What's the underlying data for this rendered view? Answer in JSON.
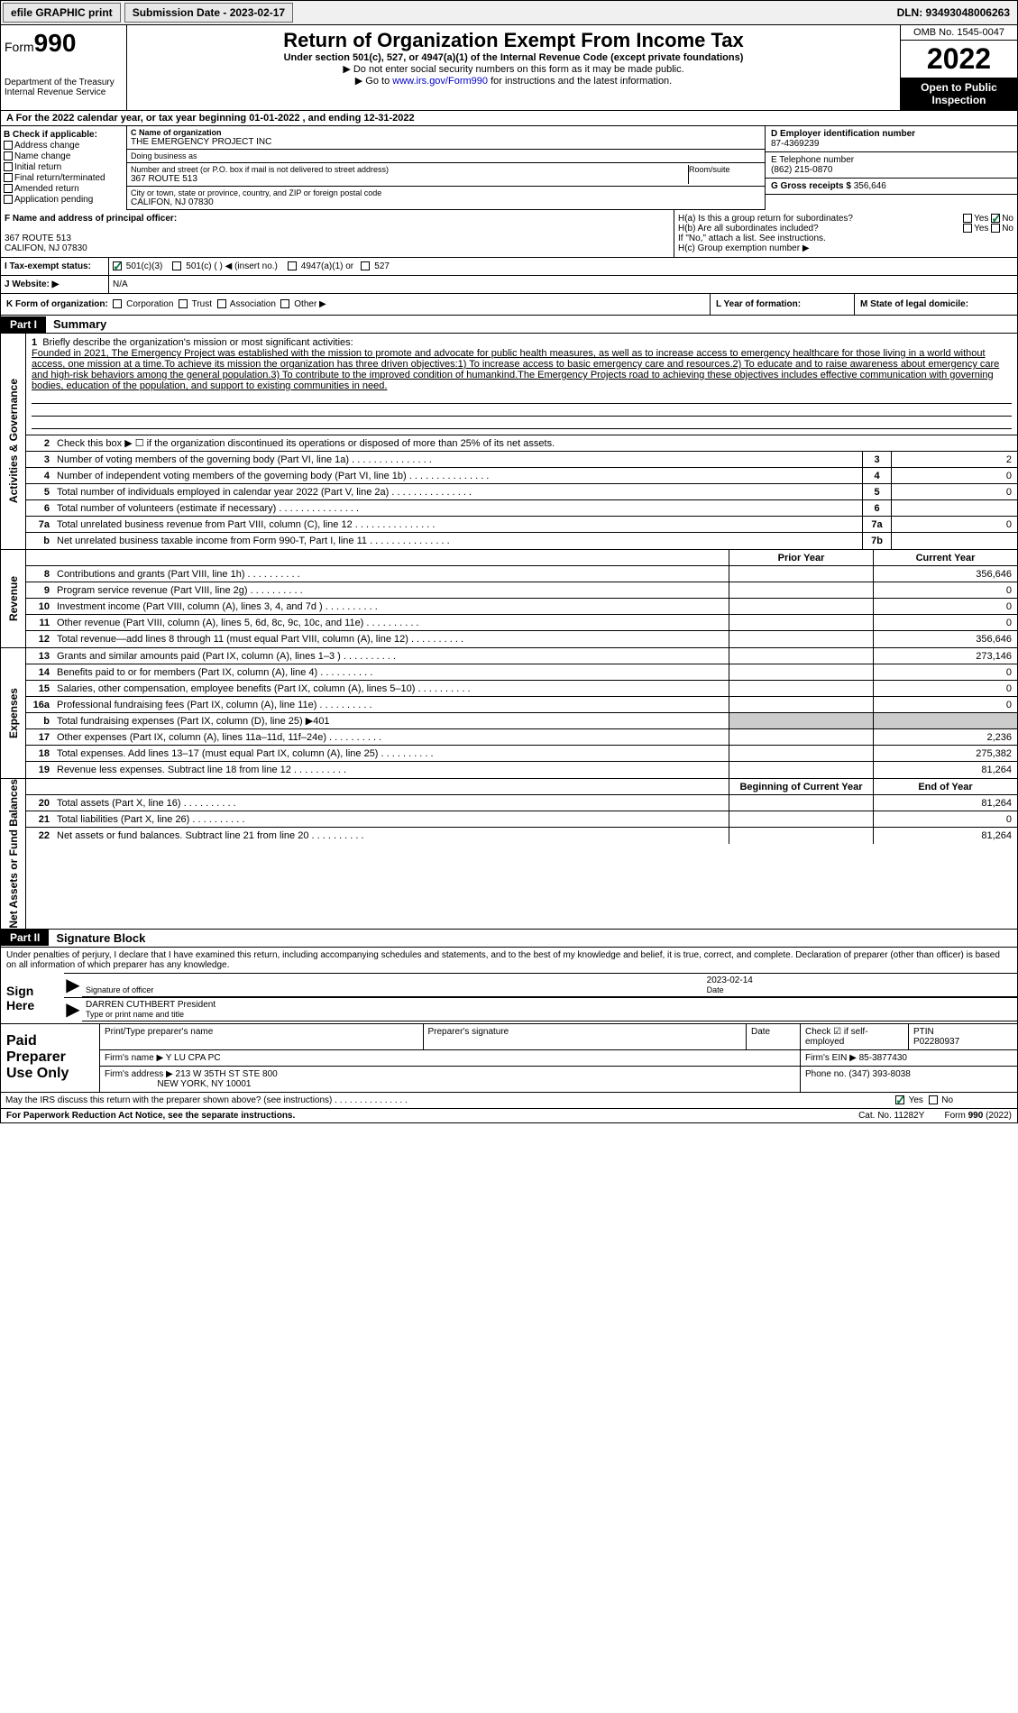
{
  "topbar": {
    "efile": "efile GRAPHIC print",
    "submission": "Submission Date - 2023-02-17",
    "dln": "DLN: 93493048006263"
  },
  "header": {
    "form_prefix": "Form",
    "form_number": "990",
    "dept": "Department of the Treasury",
    "irs": "Internal Revenue Service",
    "title": "Return of Organization Exempt From Income Tax",
    "subtitle": "Under section 501(c), 527, or 4947(a)(1) of the Internal Revenue Code (except private foundations)",
    "note1": "▶ Do not enter social security numbers on this form as it may be made public.",
    "note2_pre": "▶ Go to ",
    "note2_link": "www.irs.gov/Form990",
    "note2_post": " for instructions and the latest information.",
    "omb": "OMB No. 1545-0047",
    "year": "2022",
    "open": "Open to Public Inspection"
  },
  "row_a": "A For the 2022 calendar year, or tax year beginning 01-01-2022   , and ending 12-31-2022",
  "col_b": {
    "title": "B Check if applicable:",
    "items": [
      "Address change",
      "Name change",
      "Initial return",
      "Final return/terminated",
      "Amended return",
      "Application pending"
    ]
  },
  "col_c": {
    "name_label": "C Name of organization",
    "name": "THE EMERGENCY PROJECT INC",
    "dba_label": "Doing business as",
    "dba": "",
    "addr_label": "Number and street (or P.O. box if mail is not delivered to street address)",
    "room_label": "Room/suite",
    "addr": "367 ROUTE 513",
    "city_label": "City or town, state or province, country, and ZIP or foreign postal code",
    "city": "CALIFON, NJ  07830",
    "f_label": "F Name and address of principal officer:",
    "f_addr1": "367 ROUTE 513",
    "f_addr2": "CALIFON, NJ  07830"
  },
  "col_d": {
    "ein_label": "D Employer identification number",
    "ein": "87-4369239",
    "tel_label": "E Telephone number",
    "tel": "(862) 215-0870",
    "gross_label": "G Gross receipts $",
    "gross": "356,646",
    "ha": "H(a)  Is this a group return for subordinates?",
    "hb": "H(b)  Are all subordinates included?",
    "hb_note": "If \"No,\" attach a list. See instructions.",
    "hc": "H(c)  Group exemption number ▶",
    "yes": "Yes",
    "no": "No"
  },
  "status": {
    "label": "I  Tax-exempt status:",
    "opt1": "501(c)(3)",
    "opt2": "501(c) (  ) ◀ (insert no.)",
    "opt3": "4947(a)(1) or",
    "opt4": "527"
  },
  "website": {
    "label": "J  Website: ▶",
    "value": "N/A"
  },
  "korg": {
    "k": "K Form of organization:",
    "opts": [
      "Corporation",
      "Trust",
      "Association",
      "Other ▶"
    ],
    "l": "L Year of formation:",
    "m": "M State of legal domicile:"
  },
  "part1": {
    "tag": "Part I",
    "title": "Summary"
  },
  "summary": {
    "q1_label": "1",
    "q1": "Briefly describe the organization's mission or most significant activities:",
    "mission": "Founded in 2021, The Emergency Project was established with the mission to promote and advocate for public health measures, as well as to increase access to emergency healthcare for those living in a world without access, one mission at a time.To achieve its mission the organization has three driven objectives:1) To increase access to basic emergency care and resources.2) To educate and to raise awareness about emergency care and high-risk behaviors among the general population.3) To contribute to the improved condition of humankind.The Emergency Projects road to achieving these objectives includes effective communication with governing bodies, education of the population, and support to existing communities in need.",
    "q2": "Check this box ▶ ☐ if the organization discontinued its operations or disposed of more than 25% of its net assets.",
    "lines_single": [
      {
        "n": "3",
        "d": "Number of voting members of the governing body (Part VI, line 1a)",
        "box": "3",
        "v": "2"
      },
      {
        "n": "4",
        "d": "Number of independent voting members of the governing body (Part VI, line 1b)",
        "box": "4",
        "v": "0"
      },
      {
        "n": "5",
        "d": "Total number of individuals employed in calendar year 2022 (Part V, line 2a)",
        "box": "5",
        "v": "0"
      },
      {
        "n": "6",
        "d": "Total number of volunteers (estimate if necessary)",
        "box": "6",
        "v": ""
      },
      {
        "n": "7a",
        "d": "Total unrelated business revenue from Part VIII, column (C), line 12",
        "box": "7a",
        "v": "0"
      },
      {
        "n": "b",
        "d": "Net unrelated business taxable income from Form 990-T, Part I, line 11",
        "box": "7b",
        "v": ""
      }
    ],
    "col_headers": {
      "prior": "Prior Year",
      "current": "Current Year"
    },
    "revenue": [
      {
        "n": "8",
        "d": "Contributions and grants (Part VIII, line 1h)",
        "p": "",
        "c": "356,646"
      },
      {
        "n": "9",
        "d": "Program service revenue (Part VIII, line 2g)",
        "p": "",
        "c": "0"
      },
      {
        "n": "10",
        "d": "Investment income (Part VIII, column (A), lines 3, 4, and 7d )",
        "p": "",
        "c": "0"
      },
      {
        "n": "11",
        "d": "Other revenue (Part VIII, column (A), lines 5, 6d, 8c, 9c, 10c, and 11e)",
        "p": "",
        "c": "0"
      },
      {
        "n": "12",
        "d": "Total revenue—add lines 8 through 11 (must equal Part VIII, column (A), line 12)",
        "p": "",
        "c": "356,646"
      }
    ],
    "expenses": [
      {
        "n": "13",
        "d": "Grants and similar amounts paid (Part IX, column (A), lines 1–3 )",
        "p": "",
        "c": "273,146"
      },
      {
        "n": "14",
        "d": "Benefits paid to or for members (Part IX, column (A), line 4)",
        "p": "",
        "c": "0"
      },
      {
        "n": "15",
        "d": "Salaries, other compensation, employee benefits (Part IX, column (A), lines 5–10)",
        "p": "",
        "c": "0"
      },
      {
        "n": "16a",
        "d": "Professional fundraising fees (Part IX, column (A), line 11e)",
        "p": "",
        "c": "0"
      },
      {
        "n": "b",
        "d": "Total fundraising expenses (Part IX, column (D), line 25) ▶401",
        "shaded": true
      },
      {
        "n": "17",
        "d": "Other expenses (Part IX, column (A), lines 11a–11d, 11f–24e)",
        "p": "",
        "c": "2,236"
      },
      {
        "n": "18",
        "d": "Total expenses. Add lines 13–17 (must equal Part IX, column (A), line 25)",
        "p": "",
        "c": "275,382"
      },
      {
        "n": "19",
        "d": "Revenue less expenses. Subtract line 18 from line 12",
        "p": "",
        "c": "81,264"
      }
    ],
    "net_headers": {
      "beg": "Beginning of Current Year",
      "end": "End of Year"
    },
    "net": [
      {
        "n": "20",
        "d": "Total assets (Part X, line 16)",
        "p": "",
        "c": "81,264"
      },
      {
        "n": "21",
        "d": "Total liabilities (Part X, line 26)",
        "p": "",
        "c": "0"
      },
      {
        "n": "22",
        "d": "Net assets or fund balances. Subtract line 21 from line 20",
        "p": "",
        "c": "81,264"
      }
    ]
  },
  "vlabels": {
    "ag": "Activities & Governance",
    "rev": "Revenue",
    "exp": "Expenses",
    "net": "Net Assets or Fund Balances"
  },
  "part2": {
    "tag": "Part II",
    "title": "Signature Block"
  },
  "sig": {
    "declaration": "Under penalties of perjury, I declare that I have examined this return, including accompanying schedules and statements, and to the best of my knowledge and belief, it is true, correct, and complete. Declaration of preparer (other than officer) is based on all information of which preparer has any knowledge.",
    "sign_here": "Sign Here",
    "sig_officer": "Signature of officer",
    "date_lbl": "Date",
    "date": "2023-02-14",
    "name": "DARREN CUTHBERT President",
    "name_lbl": "Type or print name and title",
    "paid": "Paid Preparer Use Only",
    "print_name_lbl": "Print/Type preparer's name",
    "prep_sig_lbl": "Preparer's signature",
    "check_lbl": "Check ☑ if self-employed",
    "ptin_lbl": "PTIN",
    "ptin": "P02280937",
    "firm_name_lbl": "Firm's name    ▶",
    "firm_name": "Y LU CPA PC",
    "firm_ein_lbl": "Firm's EIN ▶",
    "firm_ein": "85-3877430",
    "firm_addr_lbl": "Firm's address ▶",
    "firm_addr1": "213 W 35TH ST STE 800",
    "firm_addr2": "NEW YORK, NY  10001",
    "phone_lbl": "Phone no.",
    "phone": "(347) 393-8038",
    "discuss": "May the IRS discuss this return with the preparer shown above? (see instructions)"
  },
  "footer": {
    "pra": "For Paperwork Reduction Act Notice, see the separate instructions.",
    "cat": "Cat. No. 11282Y",
    "form": "Form 990 (2022)"
  }
}
